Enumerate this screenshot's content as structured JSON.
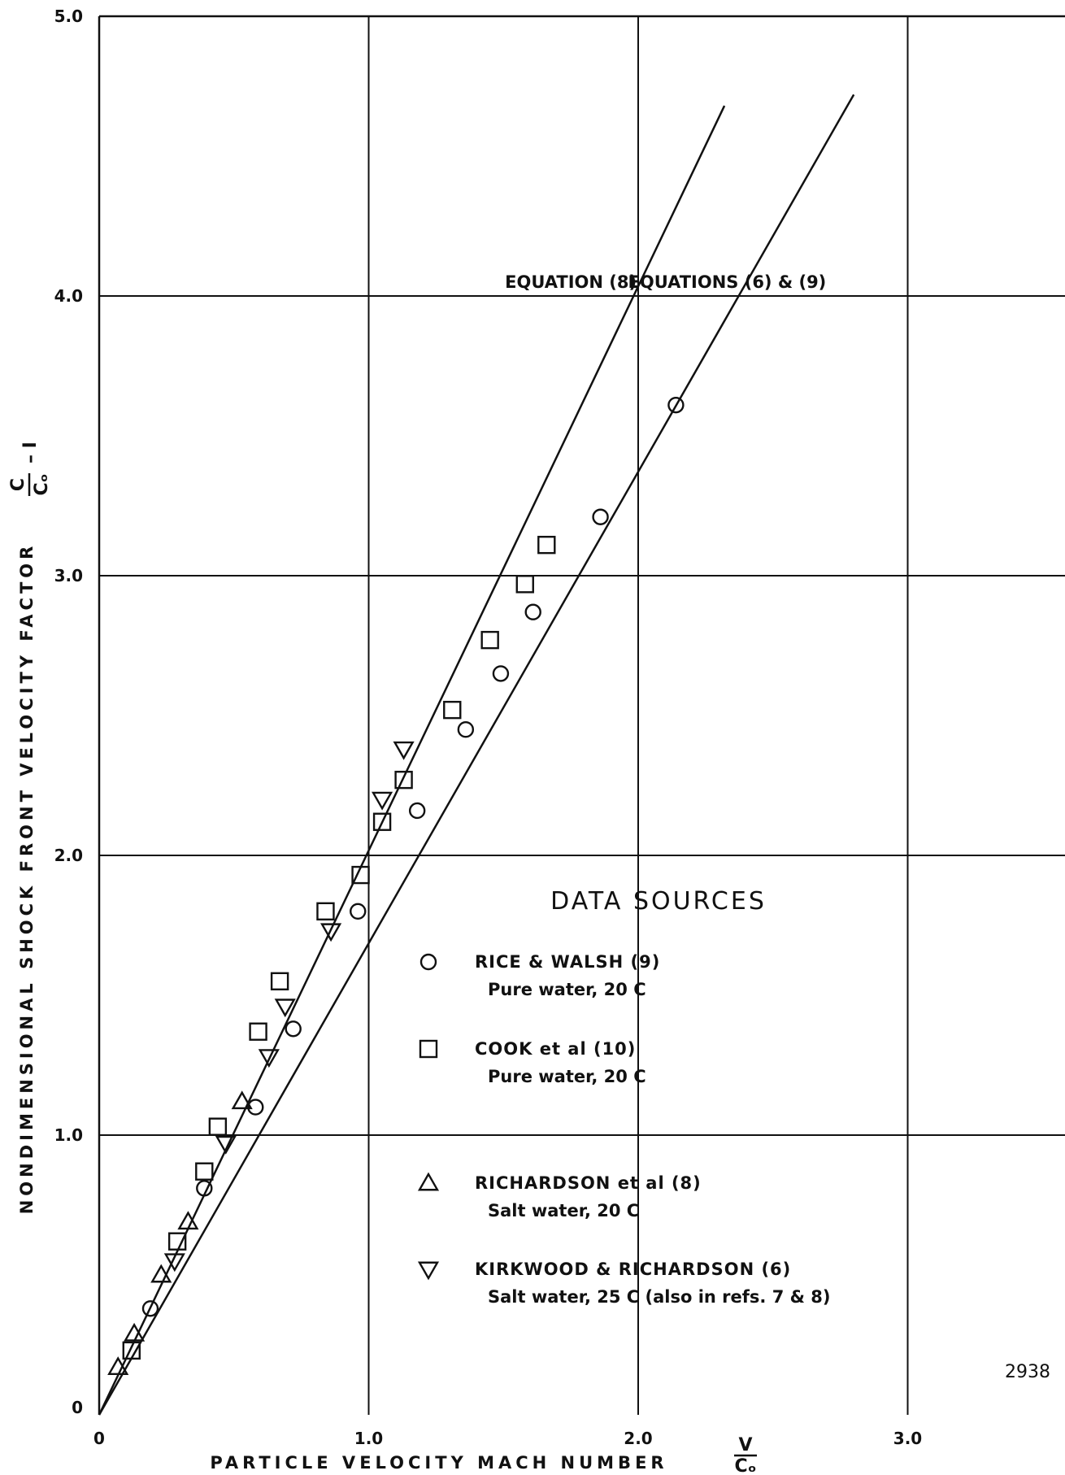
{
  "chart_data": {
    "type": "scatter",
    "title": "",
    "xlabel": "PARTICLE VELOCITY MACH NUMBER",
    "xlabel_fraction": {
      "numerator": "V",
      "denominator": "Cₒ"
    },
    "ylabel": "NONDIMENSIONAL SHOCK FRONT VELOCITY FACTOR",
    "ylabel_fraction": {
      "numerator": "C",
      "denominator": "Cₒ",
      "suffix": "– I"
    },
    "xlim": [
      0,
      3.55
    ],
    "ylim": [
      0,
      5.0
    ],
    "x_ticks": [
      {
        "value": 0,
        "label": "0"
      },
      {
        "value": 1.0,
        "label": "1.0"
      },
      {
        "value": 2.0,
        "label": "2.0"
      },
      {
        "value": 3.0,
        "label": "3.0"
      }
    ],
    "y_ticks": [
      {
        "value": 0,
        "label": "0"
      },
      {
        "value": 1.0,
        "label": "1.0"
      },
      {
        "value": 2.0,
        "label": "2.0"
      },
      {
        "value": 3.0,
        "label": "3.0"
      },
      {
        "value": 4.0,
        "label": "4.0"
      },
      {
        "value": 5.0,
        "label": "5.0"
      }
    ],
    "grid": true,
    "lines": [
      {
        "name": "EQUATION (8)",
        "x": [
          0,
          2.32
        ],
        "y": [
          0,
          4.68
        ]
      },
      {
        "name": "EQUATIONS (6) & (9)",
        "x": [
          0,
          2.8
        ],
        "y": [
          0,
          4.72
        ]
      }
    ],
    "line_labels": [
      {
        "text": "EQUATION (8)",
        "x": 1.75,
        "y": 4.05
      },
      {
        "text": "EQUATIONS (6) & (9)",
        "x": 2.33,
        "y": 4.05
      }
    ],
    "series": [
      {
        "name": "RICE & WALSH (9)",
        "description": "Pure water, 20 C",
        "marker": "circle",
        "x": [
          0.19,
          0.39,
          0.58,
          0.72,
          0.96,
          1.18,
          1.36,
          1.49,
          1.61,
          1.86,
          2.14
        ],
        "y": [
          0.38,
          0.81,
          1.1,
          1.38,
          1.8,
          2.16,
          2.45,
          2.65,
          2.87,
          3.21,
          3.61
        ]
      },
      {
        "name": "COOK et al (10)",
        "description": "Pure water, 20 C",
        "marker": "square",
        "x": [
          0.12,
          0.29,
          0.44,
          0.39,
          0.59,
          0.67,
          0.84,
          0.97,
          1.05,
          1.13,
          1.31,
          1.45,
          1.58,
          1.66
        ],
        "y": [
          0.23,
          0.62,
          1.03,
          0.87,
          1.37,
          1.55,
          1.8,
          1.93,
          2.12,
          2.27,
          2.52,
          2.77,
          2.97,
          3.11
        ]
      },
      {
        "name": "RICHARDSON et al (8)",
        "description": "Salt water, 20 C",
        "marker": "triangle-up",
        "x": [
          0.07,
          0.13,
          0.23,
          0.33,
          0.53
        ],
        "y": [
          0.17,
          0.29,
          0.5,
          0.69,
          1.12
        ]
      },
      {
        "name": "KIRKWOOD & RICHARDSON (6)",
        "description": "Salt water, 25 C (also in refs. 7 & 8)",
        "marker": "triangle-down",
        "x": [
          0.28,
          0.47,
          0.63,
          0.69,
          0.86,
          1.05,
          1.13
        ],
        "y": [
          0.55,
          0.97,
          1.28,
          1.46,
          1.73,
          2.2,
          2.38
        ]
      }
    ],
    "legend": {
      "title": "DATA SOURCES",
      "placement": "lower-right"
    },
    "figure_number": "2938"
  }
}
